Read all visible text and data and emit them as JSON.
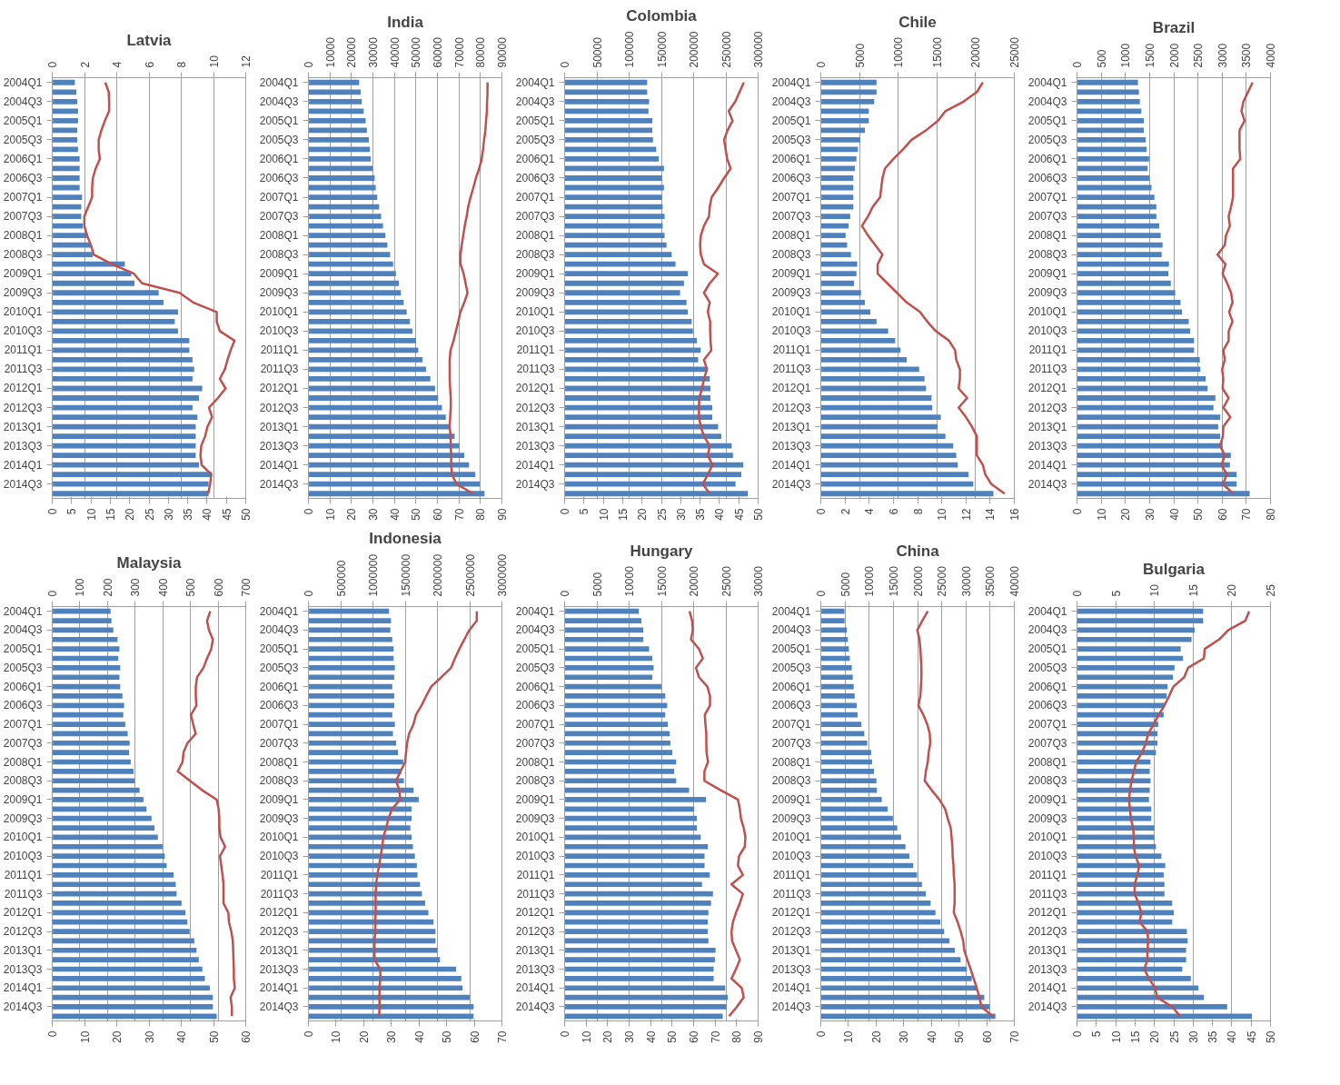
{
  "chart_data": [
    {
      "type": "bar",
      "orientation": "horizontal",
      "title": "Latvia",
      "grid": "x",
      "categories": [
        "2004Q1",
        null,
        "2004Q3",
        null,
        "2005Q1",
        null,
        "2005Q3",
        null,
        "2006Q1",
        null,
        "2006Q3",
        null,
        "2007Q1",
        null,
        "2007Q3",
        null,
        "2008Q1",
        null,
        "2008Q3",
        null,
        "2009Q1",
        null,
        "2009Q3",
        null,
        "2010Q1",
        null,
        "2010Q3",
        null,
        "2011Q1",
        null,
        "2011Q3",
        null,
        "2012Q1",
        null,
        "2012Q3",
        null,
        "2013Q1",
        null,
        "2013Q3",
        null,
        "2014Q1",
        null,
        "2014Q3",
        null
      ],
      "x2lim": [
        0,
        12
      ],
      "x2ticks": [
        0,
        2,
        4,
        6,
        8,
        10,
        12
      ],
      "xlim": [
        0,
        50
      ],
      "xticks": [
        0,
        5,
        10,
        15,
        20,
        25,
        30,
        35,
        40,
        45,
        50
      ],
      "series": [
        {
          "axis": "x2",
          "color": "#4f81bd",
          "values": [
            1.4,
            1.5,
            1.55,
            1.6,
            1.6,
            1.55,
            1.55,
            1.6,
            1.7,
            1.7,
            1.7,
            1.7,
            1.85,
            1.8,
            1.8,
            1.9,
            2.2,
            2.4,
            2.5,
            4.5,
            4.9,
            5.1,
            6.6,
            6.9,
            7.8,
            7.6,
            7.8,
            8.5,
            8.5,
            8.7,
            8.8,
            8.7,
            9.3,
            9.1,
            8.7,
            9.0,
            8.9,
            8.9,
            8.9,
            8.9,
            9.1,
            9.9,
            9.7,
            9.7
          ]
        },
        {
          "type": "line",
          "color": "#c0504d",
          "values": [
            13.7,
            14.6,
            14.7,
            14.7,
            13.6,
            12.7,
            12.0,
            12.0,
            12.3,
            11.2,
            10.5,
            10.3,
            10.3,
            9.3,
            8.3,
            8.3,
            9.0,
            10.0,
            10.7,
            15.4,
            21.1,
            23.2,
            32.9,
            36.4,
            42.5,
            42.5,
            43.3,
            47.1,
            46.1,
            45.3,
            44.6,
            43.3,
            44.8,
            42.8,
            40.5,
            41.3,
            40.1,
            39.5,
            38.5,
            38.3,
            38.6,
            41.1,
            40.8,
            40.3
          ]
        }
      ]
    },
    {
      "type": "bar",
      "orientation": "horizontal",
      "title": "India",
      "grid": "x",
      "categories": [
        "2004Q1",
        null,
        "2004Q3",
        null,
        "2005Q1",
        null,
        "2005Q3",
        null,
        "2006Q1",
        null,
        "2006Q3",
        null,
        "2007Q1",
        null,
        "2007Q3",
        null,
        "2008Q1",
        null,
        "2008Q3",
        null,
        "2009Q1",
        null,
        "2009Q3",
        null,
        "2010Q1",
        null,
        "2010Q3",
        null,
        "2011Q1",
        null,
        "2011Q3",
        null,
        "2012Q1",
        null,
        "2012Q3",
        null,
        "2013Q1",
        null,
        "2013Q3",
        null,
        "2014Q1",
        null,
        "2014Q3",
        null
      ],
      "x2lim": [
        0,
        90000
      ],
      "x2ticks": [
        0,
        10000,
        20000,
        30000,
        40000,
        50000,
        60000,
        70000,
        80000,
        90000
      ],
      "xlim": [
        0,
        90
      ],
      "xticks": [
        0,
        10,
        20,
        30,
        40,
        50,
        60,
        70,
        80,
        90
      ],
      "series": [
        {
          "axis": "x2",
          "color": "#4f81bd",
          "values": [
            23600,
            24300,
            24800,
            25700,
            26600,
            27200,
            28100,
            28600,
            29000,
            29900,
            30800,
            31300,
            32000,
            32900,
            33800,
            34700,
            35800,
            36700,
            38000,
            39400,
            40700,
            42100,
            43000,
            44300,
            45700,
            47200,
            48400,
            50000,
            51100,
            53100,
            54700,
            56700,
            58900,
            60300,
            62100,
            63900,
            65700,
            68000,
            70200,
            72500,
            74700,
            77600,
            79700,
            81900
          ]
        },
        {
          "type": "line",
          "color": "#c0504d",
          "values": [
            83.3,
            83.3,
            83.1,
            83.0,
            82.6,
            82.3,
            81.7,
            81.2,
            80.6,
            79.4,
            77.9,
            76.7,
            75.4,
            74.3,
            73.6,
            72.7,
            72.0,
            71.3,
            70.7,
            70.7,
            72.2,
            73.1,
            74.0,
            72.5,
            70.7,
            69.7,
            68.6,
            67.5,
            66.1,
            65.7,
            65.7,
            65.7,
            65.9,
            66.2,
            66.2,
            65.9,
            65.7,
            66.1,
            66.2,
            66.4,
            66.4,
            66.8,
            68.9,
            76.7
          ]
        }
      ]
    },
    {
      "type": "bar",
      "orientation": "horizontal",
      "title": "Colombia",
      "grid": "x",
      "categories": [
        "2004Q1",
        null,
        "2004Q3",
        null,
        "2005Q1",
        null,
        "2005Q3",
        null,
        "2006Q1",
        null,
        "2006Q3",
        null,
        "2007Q1",
        null,
        "2007Q3",
        null,
        "2008Q1",
        null,
        "2008Q3",
        null,
        "2009Q1",
        null,
        "2009Q3",
        null,
        "2010Q1",
        null,
        "2010Q3",
        null,
        "2011Q1",
        null,
        "2011Q3",
        null,
        "2012Q1",
        null,
        "2012Q3",
        null,
        "2013Q1",
        null,
        "2013Q3",
        null,
        "2014Q1",
        null,
        "2014Q3",
        null
      ],
      "x2lim": [
        0,
        300000
      ],
      "x2ticks": [
        0,
        50000,
        100000,
        150000,
        200000,
        250000,
        300000
      ],
      "xlim": [
        0,
        50
      ],
      "xticks": [
        0,
        5,
        10,
        15,
        20,
        25,
        30,
        35,
        40,
        45,
        50
      ],
      "series": [
        {
          "axis": "x2",
          "color": "#4f81bd",
          "values": [
            128000,
            128000,
            131000,
            130000,
            136000,
            136000,
            137000,
            142000,
            146000,
            154000,
            151000,
            154000,
            151000,
            152000,
            155000,
            152000,
            155000,
            158000,
            166000,
            172000,
            191000,
            185000,
            179000,
            189000,
            191000,
            197000,
            199000,
            205000,
            211000,
            207000,
            220000,
            225000,
            226000,
            226000,
            229000,
            229000,
            238000,
            243000,
            259000,
            261000,
            277000,
            274000,
            265000,
            284000
          ]
        },
        {
          "type": "line",
          "color": "#c0504d",
          "values": [
            46.3,
            45.2,
            44.1,
            42.4,
            43.4,
            42.1,
            41.2,
            41.6,
            42.0,
            42.9,
            41.2,
            39.7,
            38.0,
            37.5,
            37.3,
            36.0,
            35.2,
            35.0,
            35.2,
            36.0,
            39.6,
            37.5,
            36.0,
            37.5,
            37.0,
            37.6,
            37.6,
            37.7,
            37.9,
            36.0,
            36.8,
            36.0,
            35.5,
            34.8,
            34.7,
            34.7,
            35.2,
            36.0,
            37.5,
            37.0,
            38.2,
            37.0,
            35.7,
            37.5
          ]
        }
      ]
    },
    {
      "type": "bar",
      "orientation": "horizontal",
      "title": "Chile",
      "grid": "x",
      "categories": [
        "2004Q1",
        null,
        "2004Q3",
        null,
        "2005Q1",
        null,
        "2005Q3",
        null,
        "2006Q1",
        null,
        "2006Q3",
        null,
        "2007Q1",
        null,
        "2007Q3",
        null,
        "2008Q1",
        null,
        "2008Q3",
        null,
        "2009Q1",
        null,
        "2009Q3",
        null,
        "2010Q1",
        null,
        "2010Q3",
        null,
        "2011Q1",
        null,
        "2011Q3",
        null,
        "2012Q1",
        null,
        "2012Q3",
        null,
        "2013Q1",
        null,
        "2013Q3",
        null,
        "2014Q1",
        null,
        "2014Q3",
        null
      ],
      "x2lim": [
        0,
        25000
      ],
      "x2ticks": [
        0,
        5000,
        10000,
        15000,
        20000,
        25000
      ],
      "xlim": [
        0,
        16
      ],
      "xticks": [
        0,
        2,
        4,
        6,
        8,
        10,
        12,
        14,
        16
      ],
      "series": [
        {
          "axis": "x2",
          "color": "#4f81bd",
          "values": [
            7200,
            7200,
            6900,
            6200,
            6200,
            5700,
            5100,
            4800,
            4600,
            4400,
            4200,
            4200,
            4200,
            4200,
            3800,
            3600,
            3200,
            3400,
            3900,
            4700,
            4600,
            4300,
            5200,
            5700,
            6400,
            7200,
            8700,
            9600,
            10300,
            11100,
            12700,
            13400,
            13600,
            14300,
            14400,
            15500,
            15100,
            16100,
            17100,
            17500,
            17700,
            19100,
            19700,
            22300
          ]
        },
        {
          "type": "line",
          "color": "#c0504d",
          "values": [
            13.4,
            12.9,
            11.8,
            10.3,
            9.7,
            8.7,
            7.5,
            6.8,
            6.0,
            5.3,
            5.1,
            5.0,
            4.9,
            4.3,
            3.9,
            3.4,
            3.9,
            4.5,
            5.1,
            4.7,
            4.7,
            5.5,
            6.3,
            7.1,
            8.2,
            8.8,
            9.5,
            10.6,
            11.1,
            11.2,
            11.5,
            11.5,
            11.4,
            12.1,
            11.4,
            12.0,
            12.5,
            12.9,
            12.9,
            12.9,
            13.4,
            13.6,
            14.1,
            15.2
          ]
        }
      ]
    },
    {
      "type": "bar",
      "orientation": "horizontal",
      "title": "Brazil",
      "grid": "x",
      "categories": [
        "2004Q1",
        null,
        "2004Q3",
        null,
        "2005Q1",
        null,
        "2005Q3",
        null,
        "2006Q1",
        null,
        "2006Q3",
        null,
        "2007Q1",
        null,
        "2007Q3",
        null,
        "2008Q1",
        null,
        "2008Q3",
        null,
        "2009Q1",
        null,
        "2009Q3",
        null,
        "2010Q1",
        null,
        "2010Q3",
        null,
        "2011Q1",
        null,
        "2011Q3",
        null,
        "2012Q1",
        null,
        "2012Q3",
        null,
        "2013Q1",
        null,
        "2013Q3",
        null,
        "2014Q1",
        null,
        "2014Q3",
        null
      ],
      "x2lim": [
        0,
        4000
      ],
      "x2ticks": [
        0,
        500,
        1000,
        1500,
        2000,
        2500,
        3000,
        3500,
        4000
      ],
      "xlim": [
        0,
        80
      ],
      "xticks": [
        0,
        10,
        20,
        30,
        40,
        50,
        60,
        70,
        80
      ],
      "series": [
        {
          "axis": "x2",
          "color": "#4f81bd",
          "values": [
            1260,
            1280,
            1300,
            1330,
            1380,
            1380,
            1420,
            1440,
            1490,
            1460,
            1500,
            1540,
            1600,
            1640,
            1640,
            1700,
            1730,
            1770,
            1750,
            1900,
            1890,
            1940,
            2030,
            2140,
            2170,
            2310,
            2340,
            2420,
            2420,
            2540,
            2550,
            2660,
            2700,
            2860,
            2820,
            2960,
            2920,
            2960,
            3000,
            3180,
            3160,
            3300,
            3300,
            3570
          ]
        },
        {
          "type": "line",
          "color": "#c0504d",
          "values": [
            72.6,
            70.7,
            68.8,
            68.0,
            69.3,
            67.2,
            67.2,
            67.2,
            67.5,
            64.5,
            64.5,
            64.5,
            64.5,
            63.7,
            62.7,
            63.2,
            61.6,
            61.1,
            58.1,
            61.4,
            60.2,
            62.1,
            63.7,
            64.3,
            62.9,
            64.3,
            62.7,
            62.7,
            60.5,
            61.1,
            60.0,
            60.5,
            60.2,
            62.7,
            60.5,
            63.4,
            60.5,
            60.3,
            59.2,
            61.1,
            59.8,
            61.9,
            60.3,
            64.6
          ]
        }
      ]
    },
    {
      "type": "bar",
      "orientation": "horizontal",
      "title": "Malaysia",
      "grid": "x",
      "categories": [
        "2004Q1",
        null,
        "2004Q3",
        null,
        "2005Q1",
        null,
        "2005Q3",
        null,
        "2006Q1",
        null,
        "2006Q3",
        null,
        "2007Q1",
        null,
        "2007Q3",
        null,
        "2008Q1",
        null,
        "2008Q3",
        null,
        "2009Q1",
        null,
        "2009Q3",
        null,
        "2010Q1",
        null,
        "2010Q3",
        null,
        "2011Q1",
        null,
        "2011Q3",
        null,
        "2012Q1",
        null,
        "2012Q3",
        null,
        "2013Q1",
        null,
        "2013Q3",
        null,
        "2014Q1",
        null,
        "2014Q3",
        null
      ],
      "x2lim": [
        0,
        700
      ],
      "x2ticks": [
        0,
        100,
        200,
        300,
        400,
        500,
        600,
        700
      ],
      "xlim": [
        0,
        60
      ],
      "xticks": [
        0,
        10,
        20,
        30,
        40,
        50,
        60
      ],
      "series": [
        {
          "axis": "x2",
          "color": "#4f81bd",
          "values": [
            211,
            214,
            221,
            236,
            243,
            239,
            246,
            243,
            246,
            254,
            260,
            257,
            264,
            273,
            280,
            278,
            284,
            294,
            298,
            316,
            330,
            341,
            359,
            370,
            382,
            399,
            407,
            414,
            439,
            447,
            450,
            468,
            482,
            489,
            497,
            514,
            522,
            530,
            543,
            552,
            570,
            581,
            581,
            595
          ]
        },
        {
          "type": "line",
          "color": "#c0504d",
          "values": [
            49.0,
            48.0,
            48.6,
            49.8,
            49.3,
            48.0,
            46.9,
            44.9,
            44.5,
            44.5,
            44.7,
            43.0,
            43.7,
            44.5,
            41.9,
            40.7,
            40.4,
            38.9,
            42.7,
            46.5,
            51.0,
            51.6,
            51.8,
            51.8,
            52.2,
            53.6,
            52.0,
            52.4,
            52.8,
            53.1,
            53.1,
            53.1,
            54.6,
            54.8,
            55.5,
            56.0,
            56.1,
            56.2,
            56.3,
            56.3,
            56.6,
            55.3,
            55.7,
            55.7
          ]
        }
      ]
    },
    {
      "type": "bar",
      "orientation": "horizontal",
      "title": "Indonesia",
      "grid": "x",
      "categories": [
        "2004Q1",
        null,
        "2004Q3",
        null,
        "2005Q1",
        null,
        "2005Q3",
        null,
        "2006Q1",
        null,
        "2006Q3",
        null,
        "2007Q1",
        null,
        "2007Q3",
        null,
        "2008Q1",
        null,
        "2008Q3",
        null,
        "2009Q1",
        null,
        "2009Q3",
        null,
        "2010Q1",
        null,
        "2010Q3",
        null,
        "2011Q1",
        null,
        "2011Q3",
        null,
        "2012Q1",
        null,
        "2012Q3",
        null,
        "2013Q1",
        null,
        "2013Q3",
        null,
        "2014Q1",
        null,
        "2014Q3",
        null
      ],
      "x2lim": [
        0,
        3000000
      ],
      "x2ticks": [
        0,
        500000,
        1000000,
        1500000,
        2000000,
        2500000,
        3000000
      ],
      "xlim": [
        0,
        70
      ],
      "xticks": [
        0,
        10,
        20,
        30,
        40,
        50,
        60,
        70
      ],
      "series": [
        {
          "axis": "x2",
          "color": "#4f81bd",
          "values": [
            1250000,
            1280000,
            1270000,
            1300000,
            1320000,
            1320000,
            1340000,
            1330000,
            1300000,
            1330000,
            1330000,
            1300000,
            1340000,
            1310000,
            1360000,
            1390000,
            1470000,
            1440000,
            1480000,
            1630000,
            1710000,
            1600000,
            1600000,
            1580000,
            1600000,
            1620000,
            1650000,
            1680000,
            1690000,
            1730000,
            1760000,
            1810000,
            1860000,
            1940000,
            1970000,
            1970000,
            2000000,
            2040000,
            2290000,
            2370000,
            2390000,
            2500000,
            2560000,
            2560000
          ]
        },
        {
          "type": "line",
          "color": "#c0504d",
          "values": [
            60.9,
            60.9,
            58.2,
            56.4,
            54.6,
            53.0,
            51.6,
            48.1,
            44.4,
            42.6,
            40.9,
            38.9,
            38.0,
            36.4,
            35.7,
            35.3,
            35.0,
            33.3,
            31.7,
            32.9,
            33.2,
            30.2,
            29.0,
            28.1,
            27.1,
            26.7,
            26.1,
            25.6,
            24.9,
            24.5,
            24.3,
            24.3,
            24.3,
            24.2,
            24.2,
            23.9,
            23.9,
            23.9,
            26.0,
            26.0,
            25.7,
            25.7,
            25.7,
            25.6
          ]
        }
      ]
    },
    {
      "type": "bar",
      "orientation": "horizontal",
      "title": "Hungary",
      "grid": "x",
      "categories": [
        "2004Q1",
        null,
        "2004Q3",
        null,
        "2005Q1",
        null,
        "2005Q3",
        null,
        "2006Q1",
        null,
        "2006Q3",
        null,
        "2007Q1",
        null,
        "2007Q3",
        null,
        "2008Q1",
        null,
        "2008Q3",
        null,
        "2009Q1",
        null,
        "2009Q3",
        null,
        "2010Q1",
        null,
        "2010Q3",
        null,
        "2011Q1",
        null,
        "2011Q3",
        null,
        "2012Q1",
        null,
        "2012Q3",
        null,
        "2013Q1",
        null,
        "2013Q3",
        null,
        "2014Q1",
        null,
        "2014Q3",
        null
      ],
      "x2lim": [
        0,
        30000
      ],
      "x2ticks": [
        0,
        5000,
        10000,
        15000,
        20000,
        25000,
        30000
      ],
      "xlim": [
        0,
        90
      ],
      "xticks": [
        0,
        10,
        20,
        30,
        40,
        50,
        60,
        70,
        80,
        90
      ],
      "series": [
        {
          "axis": "x2",
          "color": "#4f81bd",
          "values": [
            11500,
            11900,
            12200,
            12200,
            13100,
            13600,
            13800,
            13600,
            15000,
            15600,
            15900,
            15600,
            16000,
            16300,
            16400,
            16700,
            17300,
            17000,
            17300,
            19300,
            21900,
            20100,
            20500,
            20500,
            21100,
            22200,
            21700,
            21700,
            22500,
            21300,
            23000,
            22700,
            22300,
            22200,
            22200,
            22300,
            23400,
            23300,
            23100,
            23100,
            24900,
            25300,
            25100,
            24500
          ]
        },
        {
          "type": "line",
          "color": "#c0504d",
          "values": [
            58.1,
            59.3,
            59.6,
            58.8,
            62.5,
            64.3,
            61.1,
            62.5,
            66.4,
            67.6,
            67.6,
            65.2,
            65.5,
            65.9,
            65.9,
            66.0,
            66.7,
            65.0,
            65.0,
            72.6,
            80.6,
            81.5,
            82.0,
            83.3,
            84.1,
            83.8,
            81.1,
            80.6,
            82.9,
            77.6,
            82.9,
            81.5,
            79.7,
            78.3,
            77.6,
            77.9,
            79.7,
            81.5,
            79.7,
            77.6,
            82.4,
            83.3,
            80.1,
            76.5
          ]
        }
      ]
    },
    {
      "type": "bar",
      "orientation": "horizontal",
      "title": "China",
      "grid": "x",
      "categories": [
        "2004Q1",
        null,
        "2004Q3",
        null,
        "2005Q1",
        null,
        "2005Q3",
        null,
        "2006Q1",
        null,
        "2006Q3",
        null,
        "2007Q1",
        null,
        "2007Q3",
        null,
        "2008Q1",
        null,
        "2008Q3",
        null,
        "2009Q1",
        null,
        "2009Q3",
        null,
        "2010Q1",
        null,
        "2010Q3",
        null,
        "2011Q1",
        null,
        "2011Q3",
        null,
        "2012Q1",
        null,
        "2012Q3",
        null,
        "2013Q1",
        null,
        "2013Q3",
        null,
        "2014Q1",
        null,
        "2014Q3",
        null
      ],
      "x2lim": [
        0,
        40000
      ],
      "x2ticks": [
        0,
        5000,
        10000,
        15000,
        20000,
        25000,
        30000,
        35000,
        40000
      ],
      "xlim": [
        0,
        70
      ],
      "xticks": [
        0,
        10,
        20,
        30,
        40,
        50,
        60,
        70
      ],
      "series": [
        {
          "axis": "x2",
          "color": "#4f81bd",
          "values": [
            4900,
            4900,
            5400,
            5600,
            5800,
            6000,
            6400,
            6600,
            6800,
            7000,
            7400,
            7600,
            8400,
            9000,
            9600,
            10400,
            10600,
            11000,
            11500,
            11600,
            12600,
            13800,
            14900,
            15800,
            16600,
            17500,
            18300,
            19100,
            19900,
            20900,
            21700,
            22700,
            23700,
            24700,
            25500,
            26600,
            27700,
            28900,
            30200,
            31200,
            32300,
            33800,
            34900,
            36100
          ]
        },
        {
          "type": "line",
          "color": "#c0504d",
          "values": [
            38.7,
            36.7,
            34.9,
            35.7,
            36.0,
            36.2,
            36.4,
            36.4,
            36.2,
            36.0,
            35.3,
            37.1,
            38.5,
            39.4,
            39.6,
            39.0,
            38.7,
            38.0,
            37.6,
            40.1,
            42.9,
            45.0,
            45.9,
            47.0,
            47.3,
            47.6,
            47.7,
            48.0,
            48.1,
            48.4,
            48.4,
            48.4,
            48.1,
            49.5,
            50.6,
            51.5,
            51.9,
            53.0,
            54.2,
            55.3,
            56.4,
            57.4,
            58.1,
            62.2
          ]
        }
      ]
    },
    {
      "type": "bar",
      "orientation": "horizontal",
      "title": "Bulgaria",
      "grid": "x",
      "categories": [
        "2004Q1",
        null,
        "2004Q3",
        null,
        "2005Q1",
        null,
        "2005Q3",
        null,
        "2006Q1",
        null,
        "2006Q3",
        null,
        "2007Q1",
        null,
        "2007Q3",
        null,
        "2008Q1",
        null,
        "2008Q3",
        null,
        "2009Q1",
        null,
        "2009Q3",
        null,
        "2010Q1",
        null,
        "2010Q3",
        null,
        "2011Q1",
        null,
        "2011Q3",
        null,
        "2012Q1",
        null,
        "2012Q3",
        null,
        "2013Q1",
        null,
        "2013Q3",
        null,
        "2014Q1",
        null,
        "2014Q3",
        null
      ],
      "x2lim": [
        0,
        25
      ],
      "x2ticks": [
        0,
        5,
        10,
        15,
        20,
        25
      ],
      "xlim": [
        0,
        50
      ],
      "xticks": [
        0,
        5,
        10,
        15,
        20,
        25,
        30,
        35,
        40,
        45,
        50
      ],
      "series": [
        {
          "axis": "x2",
          "color": "#4f81bd",
          "values": [
            16.3,
            16.3,
            15.2,
            14.8,
            13.4,
            13.7,
            12.6,
            12.4,
            11.7,
            11.6,
            11.3,
            11.2,
            10.5,
            10.4,
            10.4,
            10.2,
            9.5,
            9.4,
            9.5,
            9.4,
            9.3,
            9.6,
            9.6,
            10.0,
            10.0,
            10.2,
            10.9,
            11.4,
            11.2,
            11.3,
            11.3,
            12.3,
            12.5,
            12.3,
            14.2,
            14.3,
            14.1,
            14.1,
            13.6,
            14.7,
            15.7,
            16.4,
            19.4,
            22.6
          ]
        },
        {
          "type": "line",
          "color": "#c0504d",
          "values": [
            44.5,
            43.5,
            39.1,
            36.7,
            33.0,
            32.8,
            28.7,
            27.7,
            24.9,
            23.8,
            22.6,
            21.1,
            19.8,
            18.4,
            17.8,
            16.8,
            15.3,
            14.7,
            14.1,
            13.7,
            13.4,
            13.7,
            13.9,
            14.5,
            14.7,
            14.7,
            15.1,
            16.1,
            15.6,
            14.9,
            14.9,
            15.9,
            16.6,
            16.2,
            18.2,
            18.4,
            18.2,
            18.2,
            17.4,
            18.6,
            20.2,
            20.7,
            24.6,
            26.7
          ]
        }
      ]
    }
  ]
}
